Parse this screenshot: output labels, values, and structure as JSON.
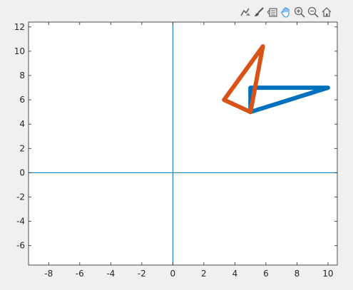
{
  "toolbar": {
    "icons": [
      "data-tips-icon",
      "brush-icon",
      "restore-view-icon",
      "pan-icon",
      "zoom-in-icon",
      "zoom-out-icon",
      "home-icon"
    ],
    "active": "pan-icon",
    "accent": "#2d8fe0"
  },
  "chart_data": {
    "type": "line",
    "xlim": [
      -9.3,
      10.6
    ],
    "ylim": [
      -7.6,
      12.4
    ],
    "xticks": [
      -8,
      -6,
      -4,
      -2,
      0,
      2,
      4,
      6,
      8,
      10
    ],
    "yticks": [
      -6,
      -4,
      -2,
      0,
      2,
      4,
      6,
      8,
      10,
      12
    ],
    "xticklabels": [
      "-8",
      "-6",
      "-4",
      "-2",
      "0",
      "2",
      "4",
      "6",
      "8",
      "10"
    ],
    "yticklabels": [
      "-6",
      "-4",
      "-2",
      "0",
      "2",
      "4",
      "6",
      "8",
      "10",
      "12"
    ],
    "grid": false,
    "reference_lines": {
      "x": 0,
      "y": 0,
      "color": "#0072bd"
    },
    "series": [
      {
        "color": "#0072bd",
        "x": [
          5,
          5,
          10,
          5
        ],
        "y": [
          5,
          7,
          7,
          5
        ]
      },
      {
        "color": "#d95319",
        "x": [
          5,
          3.3,
          5.8,
          5
        ],
        "y": [
          5,
          6,
          10.4,
          5
        ]
      }
    ]
  }
}
